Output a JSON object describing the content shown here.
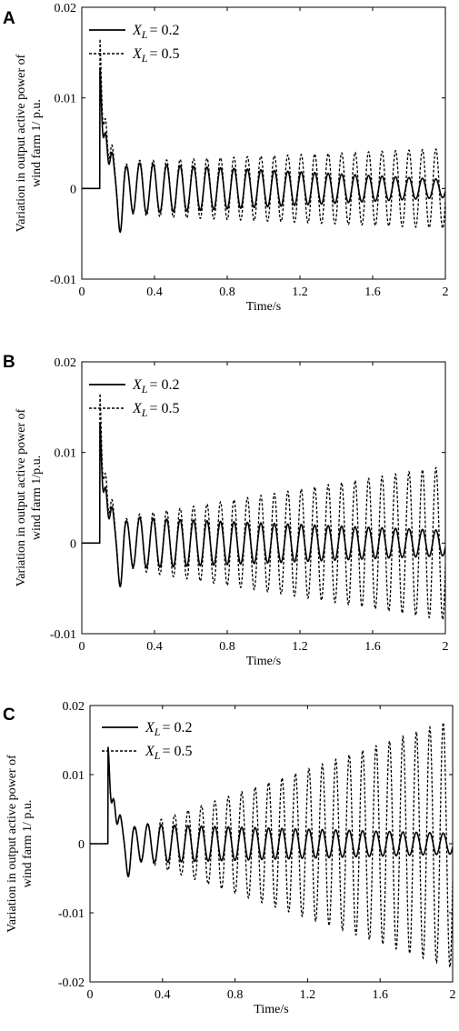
{
  "chart_data": [
    {
      "panel_label": "A",
      "type": "line",
      "xlabel": "Time/s",
      "ylabel_lines": [
        "Variation in output active power of",
        "wind farm 1/ p.u."
      ],
      "xlim": [
        0,
        2
      ],
      "ylim": [
        -0.01,
        0.02
      ],
      "xticks": [
        0,
        0.4,
        0.8,
        1.2,
        1.6,
        2
      ],
      "xtick_labels": [
        "0",
        "0.4",
        "0.8",
        "1.2",
        "1.6",
        "2"
      ],
      "yticks": [
        -0.01,
        0,
        0.01,
        0.02
      ],
      "ytick_labels": [
        "-0.01",
        "0",
        "0.01",
        "0.02"
      ],
      "legend": {
        "position": "top-left",
        "var": "X",
        "sub": "L"
      },
      "series": [
        {
          "name": "XL = 0.2",
          "value_label": "= 0.2",
          "style": "solid",
          "peak": 0.0133,
          "amp_start": 0.0028,
          "amp_end": 0.001
        },
        {
          "name": "XL = 0.5",
          "value_label": "= 0.5",
          "style": "dashed",
          "peak": 0.0165,
          "amp_start": 0.003,
          "amp_end": 0.0044
        }
      ]
    },
    {
      "panel_label": "B",
      "type": "line",
      "xlabel": "Time/s",
      "ylabel_lines": [
        "Variation in output active power of",
        "wind farm 1/p.u."
      ],
      "xlim": [
        0,
        2
      ],
      "ylim": [
        -0.01,
        0.02
      ],
      "xticks": [
        0,
        0.4,
        0.8,
        1.2,
        1.6,
        2
      ],
      "xtick_labels": [
        "0",
        "0.4",
        "0.8",
        "1.2",
        "1.6",
        "2"
      ],
      "yticks": [
        -0.01,
        0,
        0.01,
        0.02
      ],
      "ytick_labels": [
        "-0.01",
        "0",
        "0.01",
        "0.02"
      ],
      "legend": {
        "position": "top-left",
        "var": "X",
        "sub": "L"
      },
      "series": [
        {
          "name": "XL = 0.2",
          "value_label": "= 0.2",
          "style": "solid",
          "peak": 0.0133,
          "amp_start": 0.0028,
          "amp_end": 0.0014
        },
        {
          "name": "XL = 0.5",
          "value_label": "= 0.5",
          "style": "dashed",
          "peak": 0.0165,
          "amp_start": 0.003,
          "amp_end": 0.0085
        }
      ]
    },
    {
      "panel_label": "C",
      "type": "line",
      "xlabel": "Time/s",
      "ylabel_lines": [
        "Variation in output active power of",
        "wind farm 1/ p.u."
      ],
      "xlim": [
        0,
        2
      ],
      "ylim": [
        -0.02,
        0.02
      ],
      "xticks": [
        0,
        0.4,
        0.8,
        1.2,
        1.6,
        2
      ],
      "xtick_labels": [
        "0",
        "0.4",
        "0.8",
        "1.2",
        "1.6",
        "2"
      ],
      "yticks": [
        -0.02,
        -0.01,
        0,
        0.01,
        0.02
      ],
      "ytick_labels": [
        "-0.02",
        "-0.01",
        "0",
        "0.01",
        "0.02"
      ],
      "legend": {
        "position": "top-left",
        "var": "X",
        "sub": "L"
      },
      "series": [
        {
          "name": "XL = 0.2",
          "value_label": "= 0.2",
          "style": "solid",
          "peak": 0.014,
          "amp_start": 0.0028,
          "amp_end": 0.0015
        },
        {
          "name": "XL = 0.5",
          "value_label": "= 0.5",
          "style": "dashed",
          "peak": 0.014,
          "amp_start": 0.0025,
          "amp_end": 0.018
        }
      ]
    }
  ]
}
